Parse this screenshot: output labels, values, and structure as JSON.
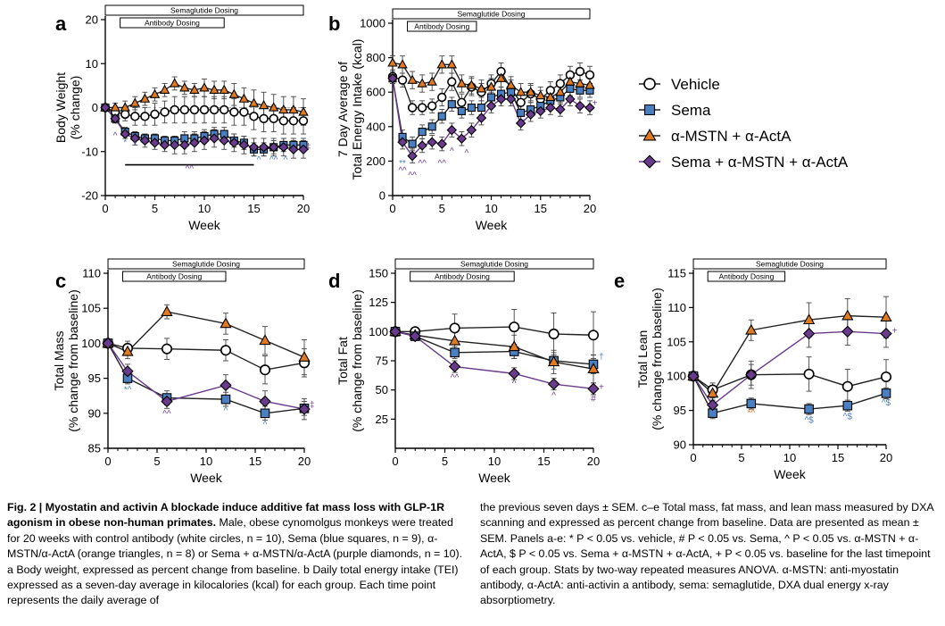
{
  "legend": [
    {
      "name": "Vehicle",
      "marker": "circle",
      "color": "#ffffff"
    },
    {
      "name": "Sema",
      "marker": "square",
      "color": "#4a7fc1"
    },
    {
      "name": "α-MSTN + α-ActA",
      "marker": "triangle",
      "color": "#e07b22"
    },
    {
      "name": "Sema + α-MSTN + α-ActA",
      "marker": "diamond",
      "color": "#6a3a8c"
    }
  ],
  "dosing_labels": {
    "sema": "Semaglutide Dosing",
    "antibody": "Antibody Dosing"
  },
  "chart_data": [
    {
      "panel": "a",
      "type": "line",
      "xlabel": "Week",
      "ylabel": "Body Weight (% change)",
      "xlim": [
        0,
        20
      ],
      "ylim": [
        -20,
        20
      ],
      "xticks": [
        0,
        5,
        10,
        15,
        20
      ],
      "yticks": [
        -20,
        -10,
        0,
        10,
        20
      ],
      "dosing": {
        "sema": [
          0,
          20
        ],
        "antibody": [
          1.5,
          12
        ]
      },
      "x": [
        0,
        1,
        2,
        3,
        4,
        5,
        6,
        7,
        8,
        9,
        10,
        11,
        12,
        13,
        14,
        15,
        16,
        17,
        18,
        19,
        20
      ],
      "series": [
        {
          "name": "Vehicle",
          "values": [
            0,
            -1,
            -1.5,
            -2,
            -2,
            -1.5,
            -1,
            -0.5,
            -0.5,
            -0.5,
            -0.5,
            -0.5,
            -0.5,
            -1,
            -1,
            -2,
            -2.5,
            -2.5,
            -3,
            -3,
            -3
          ],
          "errors": [
            0,
            1,
            1.5,
            2,
            2,
            2.5,
            2.5,
            3,
            3,
            3,
            3,
            3,
            3,
            3,
            3,
            3,
            3,
            3,
            3,
            3,
            3
          ]
        },
        {
          "name": "Sema",
          "values": [
            0,
            -2.5,
            -5.5,
            -6.5,
            -7,
            -7,
            -7.5,
            -7.5,
            -7,
            -7,
            -6.5,
            -6,
            -6,
            -7.5,
            -8,
            -9.5,
            -9.5,
            -9,
            -8.5,
            -8.5,
            -8.5
          ],
          "errors": [
            0,
            1,
            1,
            1,
            1,
            1,
            1,
            1,
            1.5,
            1.5,
            1.5,
            1.5,
            1.5,
            1.5,
            1.5,
            1.5,
            1.5,
            1.5,
            1.5,
            1.5,
            1.5
          ]
        },
        {
          "name": "α-MSTN + α-ActA",
          "values": [
            0,
            0,
            0,
            1,
            2,
            3,
            4,
            5.5,
            4.5,
            4,
            4.5,
            4,
            4,
            3,
            2,
            1,
            0.5,
            0,
            -0.5,
            -0.5,
            -1
          ],
          "errors": [
            0,
            1,
            1.5,
            1.5,
            1.5,
            1.5,
            1.5,
            1.5,
            1.5,
            1.5,
            2,
            2,
            2,
            2.5,
            2.5,
            3,
            3,
            3,
            3,
            3,
            3
          ]
        },
        {
          "name": "Sema + α-MSTN + α-ActA",
          "values": [
            0,
            -2.5,
            -6,
            -7,
            -7.5,
            -8,
            -8.5,
            -8.5,
            -8.5,
            -8,
            -7.5,
            -7,
            -7.5,
            -8,
            -8.5,
            -9,
            -9,
            -9,
            -9,
            -9.5,
            -9.5
          ],
          "errors": [
            0,
            1,
            1,
            1.5,
            1.5,
            1.5,
            1.5,
            2,
            2,
            2,
            2,
            2,
            2,
            2,
            2,
            2,
            2,
            2,
            2,
            2,
            2
          ]
        }
      ],
      "sig_bar": [
        2,
        15
      ],
      "annotations": [
        {
          "x": 1,
          "y": -7,
          "text": "^",
          "color": "#6a3a8c"
        },
        {
          "x": 2,
          "y": -8.5,
          "text": "*",
          "color": "#4a7fc1"
        },
        {
          "x": 3,
          "y": -9,
          "text": "*",
          "color": "#6a3a8c"
        },
        {
          "x": 8.5,
          "y": -14.5,
          "text": "^^",
          "color": "#6a3a8c"
        },
        {
          "x": 15.5,
          "y": -12.5,
          "text": "^",
          "color": "#4a7fc1"
        },
        {
          "x": 17,
          "y": -12.5,
          "text": "^^",
          "color": "#4a7fc1"
        },
        {
          "x": 18.2,
          "y": -12.5,
          "text": "^",
          "color": "#4a7fc1"
        },
        {
          "x": 20.5,
          "y": -9.5,
          "text": "‡",
          "color": "#6a3a8c"
        }
      ]
    },
    {
      "panel": "b",
      "type": "line",
      "xlabel": "Week",
      "ylabel": "7 Day Average of Total Energy Intake (kcal)",
      "xlim": [
        0,
        20
      ],
      "ylim": [
        0,
        1000
      ],
      "xticks": [
        0,
        5,
        10,
        15,
        20
      ],
      "yticks": [
        0,
        200,
        400,
        600,
        800,
        1000
      ],
      "dosing": {
        "sema": [
          0,
          20
        ],
        "antibody": [
          1.5,
          8.5
        ]
      },
      "x": [
        0,
        1,
        2,
        3,
        4,
        5,
        6,
        7,
        8,
        9,
        10,
        11,
        12,
        13,
        14,
        15,
        16,
        17,
        18,
        19,
        20
      ],
      "series": [
        {
          "name": "Vehicle",
          "values": [
            690,
            670,
            510,
            510,
            520,
            570,
            660,
            540,
            630,
            600,
            650,
            720,
            620,
            540,
            590,
            560,
            610,
            650,
            700,
            720,
            700
          ],
          "errors": [
            30,
            40,
            40,
            40,
            40,
            50,
            50,
            50,
            50,
            50,
            50,
            50,
            50,
            50,
            50,
            50,
            50,
            50,
            50,
            50,
            50
          ]
        },
        {
          "name": "Sema",
          "values": [
            680,
            340,
            300,
            370,
            400,
            460,
            530,
            490,
            510,
            510,
            570,
            590,
            600,
            480,
            500,
            520,
            550,
            570,
            620,
            610,
            610
          ],
          "errors": [
            30,
            40,
            40,
            40,
            40,
            40,
            40,
            40,
            40,
            40,
            40,
            40,
            40,
            40,
            40,
            40,
            40,
            40,
            40,
            40,
            40
          ]
        },
        {
          "name": "α-MSTN + α-ActA",
          "values": [
            770,
            760,
            670,
            650,
            660,
            760,
            760,
            650,
            640,
            620,
            630,
            680,
            640,
            600,
            600,
            580,
            570,
            600,
            660,
            650,
            640
          ],
          "errors": [
            40,
            50,
            50,
            50,
            50,
            50,
            50,
            50,
            50,
            50,
            50,
            50,
            50,
            50,
            50,
            50,
            50,
            50,
            50,
            50,
            50
          ]
        },
        {
          "name": "Sema + α-MSTN + α-ActA",
          "values": [
            680,
            310,
            230,
            290,
            310,
            300,
            380,
            330,
            380,
            450,
            520,
            560,
            560,
            420,
            470,
            490,
            510,
            500,
            560,
            520,
            510
          ],
          "errors": [
            30,
            40,
            40,
            40,
            40,
            40,
            40,
            40,
            40,
            40,
            40,
            40,
            40,
            40,
            40,
            40,
            40,
            40,
            40,
            40,
            40
          ]
        }
      ],
      "annotations": [
        {
          "x": 1,
          "y": 170,
          "text": "**",
          "color": "#4a7fc1"
        },
        {
          "x": 1,
          "y": 130,
          "text": "^^",
          "color": "#6a3a8c"
        },
        {
          "x": 2,
          "y": 100,
          "text": "^^",
          "color": "#6a3a8c"
        },
        {
          "x": 3,
          "y": 170,
          "text": "^^",
          "color": "#6a3a8c"
        },
        {
          "x": 5,
          "y": 170,
          "text": "^^",
          "color": "#6a3a8c"
        },
        {
          "x": 6,
          "y": 240,
          "text": "^",
          "color": "#6a3a8c"
        },
        {
          "x": 7.5,
          "y": 230,
          "text": "^",
          "color": "#6a3a8c"
        },
        {
          "x": 20.5,
          "y": 520,
          "text": "+",
          "color": "#6a3a8c"
        }
      ]
    },
    {
      "panel": "c",
      "type": "line",
      "xlabel": "Week",
      "ylabel": "Total Mass (% change from baseline)",
      "xlim": [
        0,
        20
      ],
      "ylim": [
        85,
        110
      ],
      "xticks": [
        0,
        5,
        10,
        15,
        20
      ],
      "yticks": [
        85,
        90,
        95,
        100,
        105,
        110
      ],
      "dosing": {
        "sema": [
          0,
          20
        ],
        "antibody": [
          1.5,
          12
        ]
      },
      "x": [
        0,
        2,
        6,
        12,
        16,
        20
      ],
      "series": [
        {
          "name": "Vehicle",
          "values": [
            100,
            99.3,
            99.2,
            99,
            96.2,
            97.2
          ],
          "errors": [
            0,
            1,
            1.5,
            1.5,
            2,
            2
          ]
        },
        {
          "name": "Sema",
          "values": [
            100,
            95,
            92.2,
            92,
            90,
            90.7
          ],
          "errors": [
            0,
            0.8,
            1,
            1,
            1,
            1
          ]
        },
        {
          "name": "α-MSTN + α-ActA",
          "values": [
            100,
            98.8,
            104.5,
            102.8,
            100.4,
            98
          ],
          "errors": [
            0,
            1,
            1,
            1.5,
            2,
            2.5
          ]
        },
        {
          "name": "Sema + α-MSTN + α-ActA",
          "values": [
            100,
            96,
            91.7,
            94,
            91.7,
            90.6
          ],
          "errors": [
            0,
            1,
            1,
            1.5,
            1.5,
            1.5
          ]
        }
      ],
      "annotations": [
        {
          "x": 2,
          "y": 93,
          "text": "*^",
          "color": "#4a7fc1"
        },
        {
          "x": 6,
          "y": 89.5,
          "text": "^^",
          "color": "#6a3a8c"
        },
        {
          "x": 12,
          "y": 90,
          "text": "^",
          "color": "#4a7fc1"
        },
        {
          "x": 16,
          "y": 88,
          "text": "^",
          "color": "#4a7fc1"
        },
        {
          "x": 20.8,
          "y": 90.8,
          "text": "‡",
          "color": "#6a3a8c"
        }
      ]
    },
    {
      "panel": "d",
      "type": "line",
      "xlabel": "Week",
      "ylabel": "Total Fat (% change from baseline)",
      "xlim": [
        0,
        20
      ],
      "ylim": [
        0,
        150
      ],
      "xticks": [
        0,
        5,
        10,
        15,
        20
      ],
      "yticks": [
        25,
        50,
        75,
        100,
        125,
        150
      ],
      "dosing": {
        "sema": [
          0,
          20
        ],
        "antibody": [
          1.5,
          12
        ]
      },
      "x": [
        0,
        2,
        6,
        12,
        16,
        20
      ],
      "series": [
        {
          "name": "Vehicle",
          "values": [
            100,
            100,
            103,
            104,
            98,
            97
          ],
          "errors": [
            0,
            3,
            12,
            15,
            18,
            20
          ]
        },
        {
          "name": "Sema",
          "values": [
            100,
            96,
            82,
            83,
            75,
            72
          ],
          "errors": [
            0,
            3,
            5,
            6,
            7,
            8
          ]
        },
        {
          "name": "α-MSTN + α-ActA",
          "values": [
            100,
            97,
            92,
            87,
            74,
            68
          ],
          "errors": [
            0,
            3,
            8,
            10,
            10,
            12
          ]
        },
        {
          "name": "Sema + α-MSTN + α-ActA",
          "values": [
            100,
            96,
            70,
            64,
            55,
            51
          ],
          "errors": [
            0,
            3,
            5,
            5,
            5,
            5
          ]
        }
      ],
      "annotations": [
        {
          "x": 6,
          "y": 58,
          "text": "^^",
          "color": "#6a3a8c"
        },
        {
          "x": 12,
          "y": 53,
          "text": "^",
          "color": "#6a3a8c"
        },
        {
          "x": 16,
          "y": 43,
          "text": "^",
          "color": "#6a3a8c"
        },
        {
          "x": 20,
          "y": 40,
          "text": "#",
          "color": "#6a3a8c"
        },
        {
          "x": 20.8,
          "y": 76,
          "text": "†",
          "color": "#4a7fc1"
        },
        {
          "x": 20.8,
          "y": 50,
          "text": "+",
          "color": "#6a3a8c"
        }
      ]
    },
    {
      "panel": "e",
      "type": "line",
      "xlabel": "Week",
      "ylabel": "Total Lean (% change from baseline)",
      "xlim": [
        0,
        20
      ],
      "ylim": [
        90,
        115
      ],
      "xticks": [
        0,
        5,
        10,
        15,
        20
      ],
      "yticks": [
        90,
        95,
        100,
        105,
        110,
        115
      ],
      "dosing": {
        "sema": [
          0,
          20
        ],
        "antibody": [
          1.5,
          9.5
        ]
      },
      "x": [
        0,
        2,
        6,
        12,
        16,
        20
      ],
      "series": [
        {
          "name": "Vehicle",
          "values": [
            100,
            98,
            100.2,
            100.3,
            98.5,
            99.9
          ],
          "errors": [
            0,
            1,
            2,
            2.5,
            2.5,
            2.5
          ]
        },
        {
          "name": "Sema",
          "values": [
            100,
            94.6,
            96,
            95.2,
            95.7,
            97.5
          ],
          "errors": [
            0,
            0.8,
            0.8,
            0.8,
            0.8,
            0.8
          ]
        },
        {
          "name": "α-MSTN + α-ActA",
          "values": [
            100,
            97.5,
            106.7,
            108.2,
            108.8,
            108.6
          ],
          "errors": [
            0,
            1,
            1.5,
            2.5,
            2.5,
            3
          ]
        },
        {
          "name": "Sema + α-MSTN + α-ActA",
          "values": [
            100,
            95.8,
            100.2,
            106.2,
            106.5,
            106.2
          ],
          "errors": [
            0,
            1,
            1.5,
            2,
            2,
            2
          ]
        }
      ],
      "annotations": [
        {
          "x": 6,
          "y": 94.2,
          "text": "*^",
          "color": "#e07b22"
        },
        {
          "x": 12,
          "y": 93.2,
          "text": "^$",
          "color": "#4a7fc1"
        },
        {
          "x": 16,
          "y": 93.7,
          "text": "^$",
          "color": "#4a7fc1"
        },
        {
          "x": 20,
          "y": 95.7,
          "text": "^$",
          "color": "#4a7fc1"
        },
        {
          "x": 20.9,
          "y": 106.2,
          "text": "+",
          "color": "#6a3a8c"
        }
      ]
    }
  ],
  "caption": {
    "fig_label": "Fig. 2 |",
    "title": "Myostatin and activin A blockade induce additive fat mass loss with GLP-1R agonism in obese non-human primates.",
    "left_body": "Male, obese cynomolgus monkeys were treated for 20 weeks with control antibody (white circles, n = 10), Sema (blue squares, n = 9), α-MSTN/α-ActA (orange triangles, n = 8) or Sema + α-MSTN/α-ActA (purple diamonds, n = 10). a Body weight, expressed as percent change from baseline. b Daily total energy intake (TEI) expressed as a seven-day average in kilocalories (kcal) for each group. Each time point represents the daily average of",
    "right_body": "the previous seven days ± SEM. c–e Total mass, fat mass, and lean mass measured by DXA scanning and expressed as percent change from baseline. Data are presented as mean ± SEM. Panels a-e: * P < 0.05 vs. vehicle, # P < 0.05 vs. Sema, ^ P < 0.05 vs. α-MSTN + α-ActA, $ P < 0.05 vs. Sema + α-MSTN + α-ActA, + P < 0.05 vs. baseline for the last timepoint of each group. Stats by two-way repeated measures ANOVA. α-MSTN: anti-myostatin antibody, α-ActA: anti-activin a antibody, sema: semaglutide, DXA dual energy x-ray absorptiometry."
  }
}
